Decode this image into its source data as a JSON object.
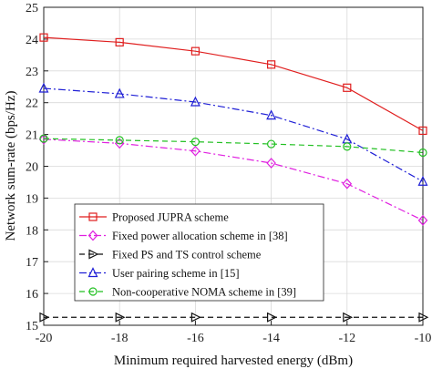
{
  "chart_data": {
    "type": "line",
    "title": "",
    "xlabel": "Minimum required harvested energy (dBm)",
    "ylabel": "Network sum-rate (bps/Hz)",
    "xlim": [
      -20,
      -10
    ],
    "ylim": [
      15,
      25
    ],
    "xticks": [
      -20,
      -18,
      -16,
      -14,
      -12,
      -10
    ],
    "yticks": [
      15,
      16,
      17,
      18,
      19,
      20,
      21,
      22,
      23,
      24,
      25
    ],
    "grid": true,
    "legend_position": "bottom-left",
    "x": [
      -20,
      -18,
      -16,
      -14,
      -12,
      -10
    ],
    "series": [
      {
        "name": "Proposed JUPRA scheme",
        "values": [
          24.05,
          23.9,
          23.62,
          23.2,
          22.47,
          21.12
        ],
        "color": "#e01f1f",
        "marker": "square",
        "dash": "solid"
      },
      {
        "name": "Fixed power allocation scheme in [38]",
        "values": [
          20.85,
          20.72,
          20.48,
          20.1,
          19.45,
          18.3
        ],
        "color": "#e020e0",
        "marker": "diamond",
        "dash": "dashdot"
      },
      {
        "name": "Fixed PS and TS control scheme",
        "values": [
          15.25,
          15.25,
          15.25,
          15.25,
          15.25,
          15.25
        ],
        "color": "#111111",
        "marker": "triangle-right",
        "dash": "dashed"
      },
      {
        "name": "User pairing scheme in [15]",
        "values": [
          22.45,
          22.28,
          22.02,
          21.6,
          20.85,
          19.52
        ],
        "color": "#1f1fd6",
        "marker": "triangle-up",
        "dash": "dashdot"
      },
      {
        "name": "Non-cooperative NOMA scheme in [39]",
        "values": [
          20.87,
          20.82,
          20.77,
          20.7,
          20.62,
          20.43
        ],
        "color": "#22c022",
        "marker": "circle",
        "dash": "dashed"
      }
    ]
  }
}
